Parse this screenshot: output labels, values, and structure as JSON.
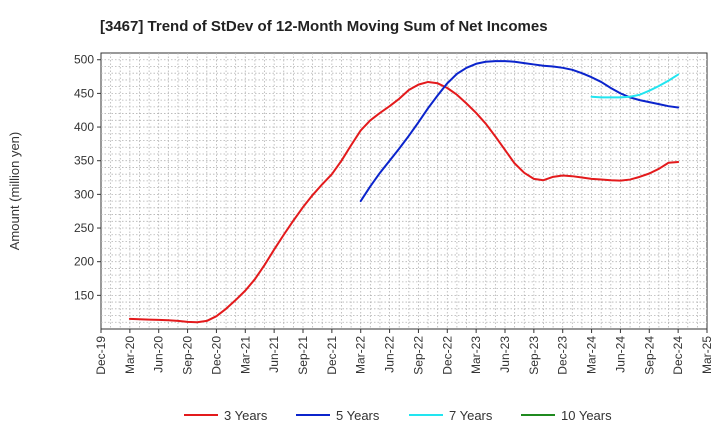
{
  "chart_data": {
    "type": "line",
    "title": "[3467]  Trend of StDev of 12-Month Moving Sum of Net Incomes",
    "ylabel": "Amount (million yen)",
    "xlabel": "",
    "ylim": [
      100,
      510
    ],
    "yticks": [
      150,
      200,
      250,
      300,
      350,
      400,
      450,
      500
    ],
    "xticks": [
      "Dec-19",
      "Mar-20",
      "Jun-20",
      "Sep-20",
      "Dec-20",
      "Mar-21",
      "Jun-21",
      "Sep-21",
      "Dec-21",
      "Mar-22",
      "Jun-22",
      "Sep-22",
      "Dec-22",
      "Mar-23",
      "Jun-23",
      "Sep-23",
      "Dec-23",
      "Mar-24",
      "Jun-24",
      "Sep-24",
      "Dec-24",
      "Mar-25"
    ],
    "grid": true,
    "legend_position": "bottom",
    "series": [
      {
        "name": "3 Years",
        "color": "#e31a1c",
        "x": [
          "Mar-20",
          "Apr-20",
          "May-20",
          "Jun-20",
          "Jul-20",
          "Aug-20",
          "Sep-20",
          "Oct-20",
          "Nov-20",
          "Dec-20",
          "Jan-21",
          "Feb-21",
          "Mar-21",
          "Apr-21",
          "May-21",
          "Jun-21",
          "Jul-21",
          "Aug-21",
          "Sep-21",
          "Oct-21",
          "Nov-21",
          "Dec-21",
          "Jan-22",
          "Feb-22",
          "Mar-22",
          "Apr-22",
          "May-22",
          "Jun-22",
          "Jul-22",
          "Aug-22",
          "Sep-22",
          "Oct-22",
          "Nov-22",
          "Dec-22",
          "Jan-23",
          "Feb-23",
          "Mar-23",
          "Apr-23",
          "May-23",
          "Jun-23",
          "Jul-23",
          "Aug-23",
          "Sep-23",
          "Oct-23",
          "Nov-23",
          "Dec-23",
          "Jan-24",
          "Feb-24",
          "Mar-24",
          "Apr-24",
          "May-24",
          "Jun-24",
          "Jul-24",
          "Aug-24",
          "Sep-24",
          "Oct-24",
          "Nov-24",
          "Dec-24"
        ],
        "values": [
          115,
          114.5,
          114,
          113.5,
          113,
          112,
          110.5,
          110,
          112,
          119,
          130,
          143,
          157,
          174,
          195,
          218,
          240,
          261,
          281,
          299,
          315,
          330,
          350,
          373,
          395,
          410,
          421,
          431,
          442,
          455,
          463,
          467,
          465,
          458,
          448,
          435,
          421,
          405,
          386,
          366,
          346,
          332,
          323,
          321,
          326,
          328,
          327,
          325,
          323,
          322,
          321,
          320.5,
          322,
          326,
          331,
          338,
          347,
          348
        ]
      },
      {
        "name": "5 Years",
        "color": "#0b24cc",
        "x": [
          "Mar-22",
          "Apr-22",
          "May-22",
          "Jun-22",
          "Jul-22",
          "Aug-22",
          "Sep-22",
          "Oct-22",
          "Nov-22",
          "Dec-22",
          "Jan-23",
          "Feb-23",
          "Mar-23",
          "Apr-23",
          "May-23",
          "Jun-23",
          "Jul-23",
          "Aug-23",
          "Sep-23",
          "Oct-23",
          "Nov-23",
          "Dec-23",
          "Jan-24",
          "Feb-24",
          "Mar-24",
          "Apr-24",
          "May-24",
          "Jun-24",
          "Jul-24",
          "Aug-24",
          "Sep-24",
          "Oct-24",
          "Nov-24",
          "Dec-24"
        ],
        "values": [
          290,
          312,
          332,
          350,
          368,
          387,
          407,
          428,
          447,
          465,
          479,
          488,
          494,
          497,
          498,
          498,
          497,
          495,
          493,
          491,
          490,
          488,
          485,
          480,
          474,
          467,
          458,
          450,
          444,
          440,
          437,
          434,
          431,
          429
        ]
      },
      {
        "name": "7 Years",
        "color": "#22e5f0",
        "x": [
          "Mar-24",
          "Apr-24",
          "May-24",
          "Jun-24",
          "Jul-24",
          "Aug-24",
          "Sep-24",
          "Oct-24",
          "Nov-24",
          "Dec-24"
        ],
        "values": [
          445,
          444,
          444,
          444,
          445,
          448,
          454,
          461,
          469,
          478
        ]
      },
      {
        "name": "10 Years",
        "color": "#1f8a1f",
        "x": [],
        "values": []
      }
    ]
  }
}
